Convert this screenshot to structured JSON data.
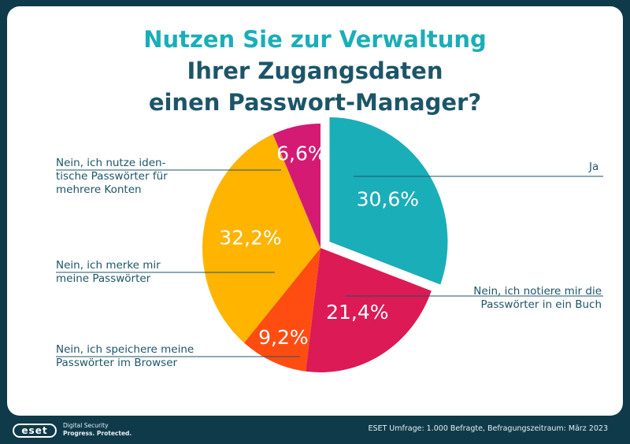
{
  "title": {
    "line1": "Nutzen Sie zur Verwaltung",
    "line2": "Ihrer Zugangsdaten",
    "line3": "einen Passwort-Manager?"
  },
  "chart_data": {
    "type": "pie",
    "unit": "%",
    "slices": [
      {
        "label_lines": [
          "Ja"
        ],
        "value": 30.6,
        "display": "30,6%",
        "color": "#1aaeb8",
        "exploded": true
      },
      {
        "label_lines": [
          "Nein, ich notiere mir die",
          "Passwörter in ein Buch"
        ],
        "value": 21.4,
        "display": "21,4%",
        "color": "#dc1a55"
      },
      {
        "label_lines": [
          "Nein, ich speichere meine",
          "Passwörter im Browser"
        ],
        "value": 9.2,
        "display": "9,2%",
        "color": "#ff4d12"
      },
      {
        "label_lines": [
          "Nein, ich merke mir",
          "meine Passwörter"
        ],
        "value": 32.2,
        "display": "32,2%",
        "color": "#ffb400"
      },
      {
        "label_lines": [
          "Nein, ich nutze iden-",
          "tische Passwörter für",
          "mehrere Konten"
        ],
        "value": 6.6,
        "display": "6,6%",
        "color": "#d41a72"
      }
    ]
  },
  "footer": {
    "logo": "eset",
    "tagline_1": "Digital Security",
    "tagline_2": "Progress. Protected.",
    "source": "ESET Umfrage: 1.000 Befragte, Befragungszeitraum: März 2023"
  },
  "colors": {
    "background": "#0f3a4a",
    "title_accent": "#1aaeb8",
    "title_dark": "#1d5568",
    "line": "#1d5568"
  }
}
